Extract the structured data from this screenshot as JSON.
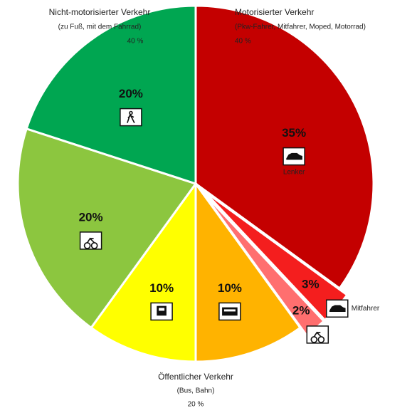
{
  "chart_data": {
    "type": "pie",
    "categories": [
      "Lenker",
      "Mitfahrer",
      null,
      null,
      null,
      null,
      null
    ],
    "values": [
      35,
      3,
      2,
      10,
      10,
      20,
      20
    ],
    "value_labels": [
      "35%",
      "3%",
      "2%",
      "10%",
      "10%",
      "20%",
      "20%"
    ],
    "colors": [
      "#c40000",
      "#f41e1e",
      "#ff6f6f",
      "#ffb300",
      "#ffff00",
      "#8cc63f",
      "#00a651"
    ],
    "explode": [
      false,
      true,
      true,
      false,
      false,
      false,
      false
    ],
    "groups": [
      {
        "title": "Nicht-motorisierter Verkehr",
        "subtitle": "(zu Fuß, mit dem Fahrrad)",
        "share": "40 %"
      },
      {
        "title": "Motorisierter Verkehr",
        "subtitle": "(Pkw-Fahrer, Mitfahrer, Moped, Motorrad)",
        "share": "40 %"
      },
      {
        "title": "Öffentlicher Verkehr",
        "subtitle": "(Bus, Bahn)",
        "share": "20 %"
      }
    ]
  }
}
